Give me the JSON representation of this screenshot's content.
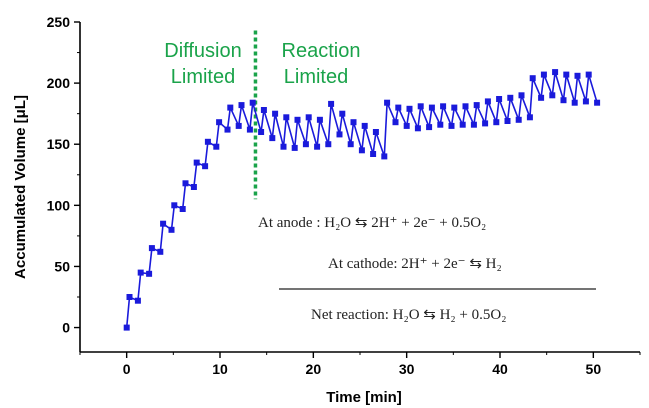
{
  "chart_data": {
    "type": "line",
    "xlabel": "Time [min]",
    "ylabel": "Accumulated Volume [μL]",
    "xlim": [
      -5,
      55
    ],
    "ylim": [
      -20,
      250
    ],
    "xticks": [
      "0",
      "10",
      "20",
      "30",
      "40",
      "50"
    ],
    "yticks": [
      "0",
      "50",
      "100",
      "150",
      "200",
      "250"
    ],
    "series_color": "#1a1adb",
    "divider": {
      "x": 13.8,
      "color": "#1aa34a"
    },
    "region_labels": {
      "left_line1": "Diffusion",
      "left_line2": "Limited",
      "right_line1": "Reaction",
      "right_line2": "Limited"
    },
    "equations": {
      "anode": "At anode : H₂O ⇆ 2H⁺ + 2e⁻ + 0.5O₂",
      "cathode": "At cathode: 2H⁺ + 2e⁻ ⇆ H₂",
      "net": "Net reaction: H₂O ⇆ H₂ + 0.5O₂"
    },
    "series": [
      {
        "x": [
          0,
          0.3,
          1.2,
          1.5,
          2.4,
          2.7,
          3.6,
          3.9,
          4.8,
          5.1,
          6.0,
          6.3,
          7.2,
          7.5,
          8.4,
          8.7,
          9.6,
          9.9,
          10.8,
          11.1,
          12.0,
          12.3,
          13.2,
          13.5,
          14.4,
          14.7,
          15.6,
          15.9,
          16.8,
          17.1,
          18.0,
          18.3,
          19.2,
          19.5,
          20.4,
          20.7,
          21.6,
          21.9,
          22.8,
          23.1,
          24.0,
          24.3,
          25.2,
          25.5,
          26.4,
          26.7,
          27.6,
          27.9,
          28.8,
          29.1,
          30.0,
          30.3,
          31.2,
          31.5,
          32.4,
          32.7,
          33.6,
          33.9,
          34.8,
          35.1,
          36.0,
          36.3,
          37.2,
          37.5,
          38.4,
          38.7,
          39.6,
          39.9,
          40.8,
          41.1,
          42.0,
          42.3,
          43.2,
          43.5,
          44.4,
          44.7,
          45.6,
          45.9,
          46.8,
          47.1,
          48.0,
          48.3,
          49.2,
          49.5,
          50.4
        ],
        "y": [
          0,
          25,
          22,
          45,
          44,
          65,
          62,
          85,
          80,
          100,
          97,
          118,
          115,
          135,
          132,
          152,
          148,
          168,
          162,
          180,
          165,
          182,
          162,
          184,
          160,
          178,
          155,
          175,
          148,
          172,
          147,
          170,
          150,
          172,
          148,
          170,
          150,
          183,
          158,
          175,
          150,
          168,
          145,
          165,
          142,
          160,
          140,
          184,
          168,
          180,
          165,
          179,
          163,
          181,
          164,
          180,
          166,
          181,
          165,
          180,
          166,
          181,
          166,
          182,
          167,
          185,
          168,
          187,
          169,
          188,
          170,
          190,
          172,
          204,
          188,
          207,
          190,
          209,
          186,
          207,
          184,
          206,
          185,
          207,
          184
        ]
      }
    ]
  }
}
